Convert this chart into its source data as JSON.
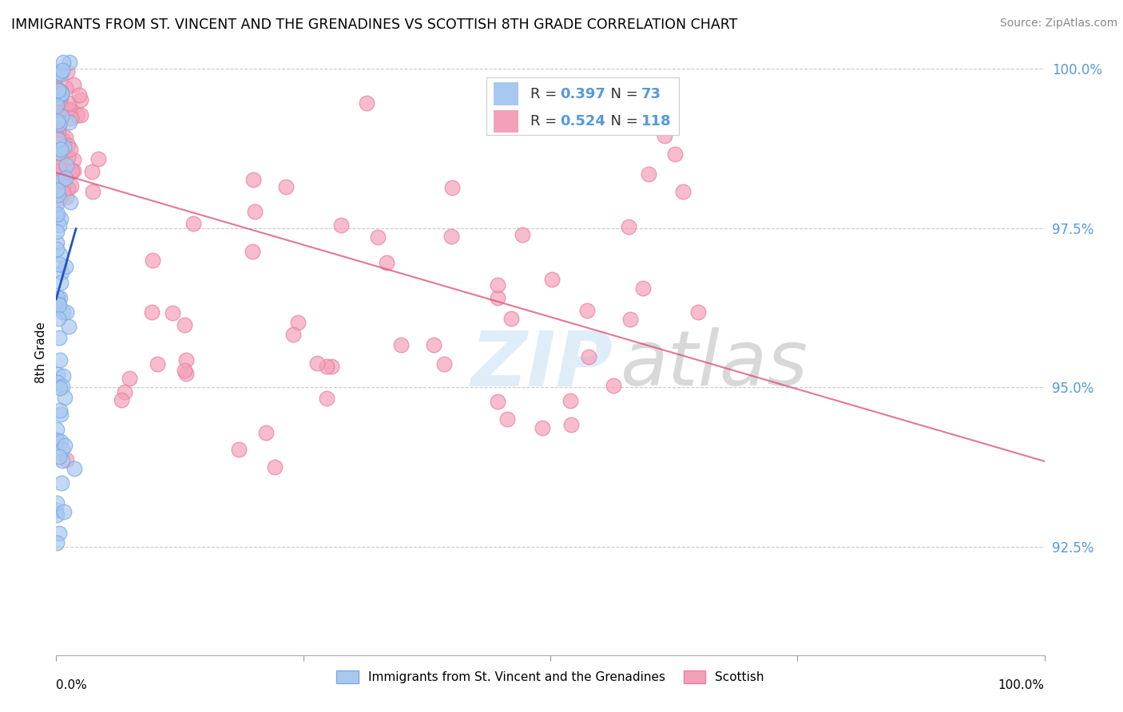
{
  "title": "IMMIGRANTS FROM ST. VINCENT AND THE GRENADINES VS SCOTTISH 8TH GRADE CORRELATION CHART",
  "source": "Source: ZipAtlas.com",
  "ylabel": "8th Grade",
  "legend_label_blue": "Immigrants from St. Vincent and the Grenadines",
  "legend_label_pink": "Scottish",
  "R_blue": 0.397,
  "N_blue": 73,
  "R_pink": 0.524,
  "N_pink": 118,
  "blue_color": "#a8c8f0",
  "pink_color": "#f4a0b8",
  "blue_edge_color": "#7aaae0",
  "pink_edge_color": "#e880a0",
  "blue_line_color": "#2255bb",
  "pink_line_color": "#dd5577",
  "tick_color": "#5599dd",
  "xlim": [
    0.0,
    1.0
  ],
  "ylim": [
    0.908,
    1.003
  ],
  "y_ticks": [
    0.925,
    0.95,
    0.975,
    1.0
  ],
  "y_tick_labels": [
    "92.5%",
    "95.0%",
    "97.5%",
    "100.0%"
  ],
  "watermark_zip": "ZIP",
  "watermark_atlas": "atlas",
  "figsize": [
    14.06,
    8.92
  ],
  "dpi": 100
}
